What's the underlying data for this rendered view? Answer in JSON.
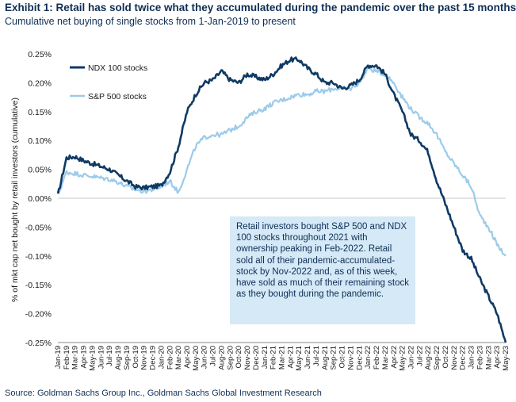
{
  "title": "Exhibit 1: Retail has sold twice what they accumulated during the pandemic over the past 15 months",
  "subtitle": "Cumulative net buying of single stocks from 1-Jan-2019 to present",
  "source": "Source: Goldman Sachs Group Inc., Goldman Sachs Global Investment Research",
  "annotation": "Retail investors bought S&P 500 and NDX 100 stocks throughout 2021 with ownership peaking in Feb-2022. Retail sold all of their pandemic-accumulated-stock by Nov-2022 and, as of this week, have sold as much of their remaining stock as they bought during the pandemic.",
  "colors": {
    "ndx": "#0f3a63",
    "spx": "#9ccbea",
    "annotation_bg": "#d5e9f7",
    "title": "#0f2e54"
  },
  "chart_data": {
    "type": "line",
    "ylabel": "% of mkt cap net bought by retail investors (cumulative)",
    "ylim": [
      -0.25,
      0.25
    ],
    "y_ticks": [
      "0.25%",
      "0.20%",
      "0.15%",
      "0.10%",
      "0.05%",
      "0.00%",
      "-0.05%",
      "-0.10%",
      "-0.15%",
      "-0.20%",
      "-0.25%"
    ],
    "y_tick_values": [
      0.25,
      0.2,
      0.15,
      0.1,
      0.05,
      0.0,
      -0.05,
      -0.1,
      -0.15,
      -0.2,
      -0.25
    ],
    "categories": [
      "Jan-19",
      "Feb-19",
      "Mar-19",
      "Apr-19",
      "May-19",
      "Jun-19",
      "Jul-19",
      "Aug-19",
      "Sep-19",
      "Oct-19",
      "Nov-19",
      "Dec-19",
      "Jan-20",
      "Feb-20",
      "Mar-20",
      "Apr-20",
      "May-20",
      "Jun-20",
      "Jul-20",
      "Aug-20",
      "Sep-20",
      "Oct-20",
      "Nov-20",
      "Dec-20",
      "Jan-21",
      "Feb-21",
      "Mar-21",
      "Apr-21",
      "May-21",
      "Jun-21",
      "Jul-21",
      "Aug-21",
      "Sep-21",
      "Oct-21",
      "Nov-21",
      "Dec-21",
      "Jan-22",
      "Feb-22",
      "Mar-22",
      "Apr-22",
      "May-22",
      "Jun-22",
      "Jul-22",
      "Aug-22",
      "Sep-22",
      "Oct-22",
      "Nov-22",
      "Dec-22",
      "Jan-23",
      "Feb-23",
      "Mar-23",
      "Apr-23",
      "May-23"
    ],
    "legend_position": "top-left",
    "series": [
      {
        "name": "NDX 100 stocks",
        "values": [
          0.005,
          0.07,
          0.072,
          0.065,
          0.06,
          0.055,
          0.05,
          0.04,
          0.03,
          0.02,
          0.018,
          0.02,
          0.022,
          0.045,
          0.09,
          0.15,
          0.18,
          0.2,
          0.205,
          0.22,
          0.205,
          0.2,
          0.215,
          0.21,
          0.205,
          0.215,
          0.23,
          0.24,
          0.24,
          0.225,
          0.215,
          0.2,
          0.2,
          0.19,
          0.195,
          0.205,
          0.23,
          0.23,
          0.215,
          0.18,
          0.15,
          0.11,
          0.1,
          0.08,
          0.03,
          -0.01,
          -0.05,
          -0.09,
          -0.105,
          -0.14,
          -0.17,
          -0.2,
          -0.25
        ]
      },
      {
        "name": "S&P 500 stocks",
        "values": [
          0.005,
          0.045,
          0.043,
          0.04,
          0.038,
          0.035,
          0.033,
          0.028,
          0.02,
          0.015,
          0.012,
          0.015,
          0.02,
          0.03,
          0.01,
          0.05,
          0.09,
          0.105,
          0.11,
          0.11,
          0.118,
          0.125,
          0.14,
          0.15,
          0.155,
          0.165,
          0.17,
          0.175,
          0.18,
          0.18,
          0.185,
          0.185,
          0.19,
          0.19,
          0.19,
          0.2,
          0.225,
          0.22,
          0.215,
          0.2,
          0.175,
          0.155,
          0.14,
          0.13,
          0.11,
          0.08,
          0.06,
          0.04,
          0.02,
          -0.03,
          -0.05,
          -0.08,
          -0.1
        ]
      }
    ]
  }
}
